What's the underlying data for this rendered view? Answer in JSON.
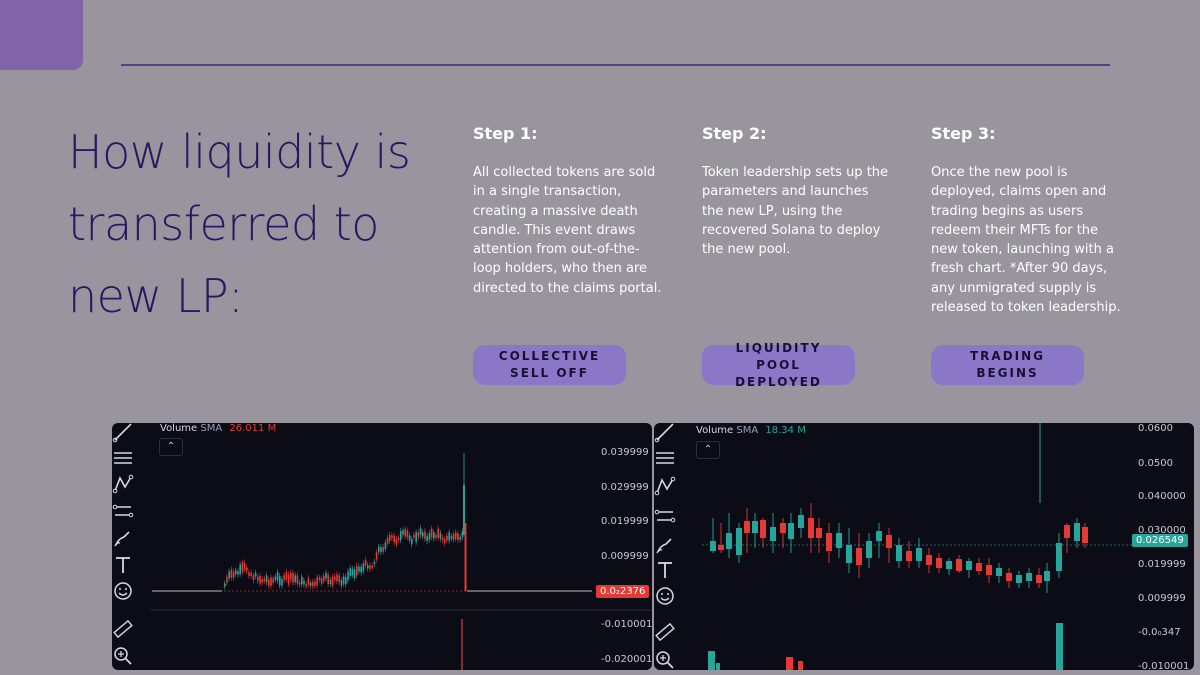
{
  "headline": "How liquidity is transferred to new LP:",
  "steps": [
    {
      "title": "Step 1:",
      "body": "All collected tokens are sold in a single transaction, creating a massive death candle. This event draws attention from out-of-the-loop holders, who then are directed to the claims portal.",
      "button": "COLLECTIVE SELL OFF"
    },
    {
      "title": "Step 2:",
      "body": "Token leadership sets up the parameters and launches the new LP, using the recovered Solana to deploy the new pool.",
      "button": "LIQUIDITY POOL DEPLOYED"
    },
    {
      "title": "Step 3:",
      "body": "Once the new pool is deployed, claims open and trading begins as users redeem their MFTs for the new token, launching with a fresh chart. *After 90 days, any unmigrated supply is released to token leadership.",
      "button": "TRADING BEGINS"
    }
  ],
  "left_chart": {
    "volume_label": "Volume",
    "sma_label": "SMA",
    "volume_value": "26.011 M",
    "volume_value_color": "#e53935",
    "price_axis": [
      "0.039999",
      "0.029999",
      "0.019999",
      "0.009999",
      "-0.010001",
      "-0.020001"
    ],
    "current_price": "0.0₂2376",
    "current_price_color": "#e53935",
    "collapse_icon": "chevron-up-icon"
  },
  "right_chart": {
    "volume_label": "Volume",
    "sma_label": "SMA",
    "volume_value": "18.34 M",
    "volume_value_color": "#26a69a",
    "price_axis": [
      "0.0600",
      "0.0500",
      "0.040000",
      "0.030000",
      "0.019999",
      "0.009999",
      "-0.0₀347",
      "-0.010001"
    ],
    "current_price": "0.026549",
    "current_price_color": "#26a69a",
    "collapse_icon": "chevron-up-icon"
  },
  "toolbar_icons": [
    "trend-line-icon",
    "horizontal-lines-icon",
    "pattern-icon",
    "fib-icon",
    "brush-icon",
    "text-icon",
    "emoji-icon",
    "ruler-icon",
    "zoom-icon"
  ],
  "colors": {
    "background": "#98959f",
    "accent": "#8063a8",
    "headline": "#2a1760",
    "pill": "#8b77c7",
    "up": "#26a69a",
    "down": "#e53935"
  }
}
